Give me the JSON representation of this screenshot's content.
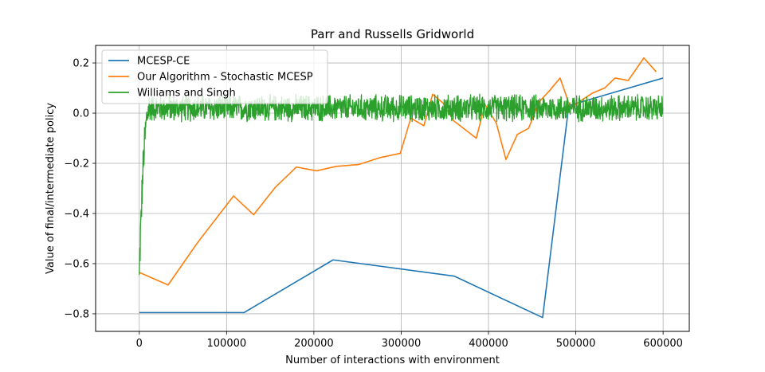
{
  "chart_data": {
    "type": "line",
    "title": "Parr and Russells Gridworld",
    "xlabel": "Number of interactions with environment",
    "ylabel": "Value of final/intermediate policy",
    "xlim": [
      -50000,
      630000
    ],
    "ylim": [
      -0.87,
      0.27
    ],
    "xticks": [
      0,
      100000,
      200000,
      300000,
      400000,
      500000,
      600000
    ],
    "xtick_labels": [
      "0",
      "100000",
      "200000",
      "300000",
      "400000",
      "500000",
      "600000"
    ],
    "yticks": [
      -0.8,
      -0.6,
      -0.4,
      -0.2,
      0.0,
      0.2
    ],
    "ytick_labels": [
      "−0.8",
      "−0.6",
      "−0.4",
      "−0.2",
      "0.0",
      "0.2"
    ],
    "grid": true,
    "legend_position": "top-left",
    "series": [
      {
        "name": "MCESP-CE",
        "color": "#1f77b4",
        "x": [
          0,
          120000,
          222000,
          361000,
          462000,
          492000,
          600000
        ],
        "y": [
          -0.795,
          -0.795,
          -0.585,
          -0.65,
          -0.815,
          0.03,
          0.14
        ]
      },
      {
        "name": "Our Algorithm - Stochastic MCESP",
        "color": "#ff7f0e",
        "x": [
          0,
          33000,
          67000,
          108000,
          131000,
          156000,
          180000,
          203000,
          226000,
          251000,
          275000,
          299000,
          311000,
          326000,
          336000,
          348000,
          360000,
          373000,
          386000,
          396000,
          409000,
          420000,
          433000,
          446000,
          458000,
          470000,
          482000,
          494000,
          506000,
          519000,
          533000,
          545000,
          560000,
          578000,
          592000
        ],
        "y": [
          -0.635,
          -0.685,
          -0.515,
          -0.33,
          -0.405,
          -0.295,
          -0.215,
          -0.23,
          -0.212,
          -0.205,
          -0.178,
          -0.16,
          -0.02,
          -0.05,
          0.075,
          0.04,
          -0.03,
          -0.065,
          -0.1,
          0.035,
          -0.04,
          -0.185,
          -0.085,
          -0.06,
          0.045,
          0.09,
          0.14,
          0.02,
          0.05,
          0.08,
          0.1,
          0.14,
          0.13,
          0.22,
          0.165
        ]
      },
      {
        "name": "Williams and Singh",
        "color": "#2ca02c",
        "x_start": 0,
        "x_end": 600000,
        "points": 1800,
        "initial_value": -0.645,
        "converged_mean": 0.02,
        "noise_amplitude": 0.06
      }
    ]
  }
}
